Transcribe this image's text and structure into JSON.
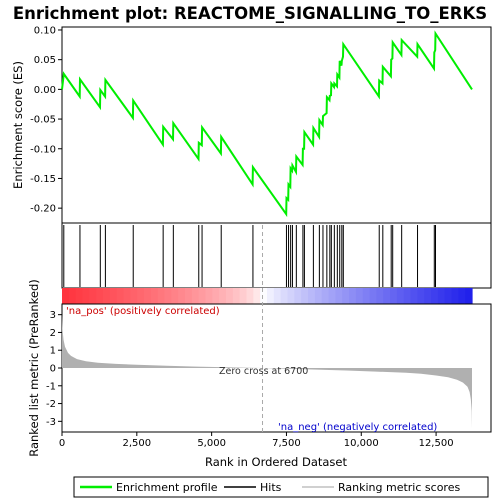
{
  "chart_data": {
    "type": "line",
    "title": "Enrichment plot: REACTOME_SIGNALLING_TO_ERKS",
    "xlabel": "Rank in Ordered Dataset",
    "top_ylabel": "Enrichment score (ES)",
    "bottom_ylabel": "Ranked list metric (PreRanked)",
    "xlim": [
      0,
      13700
    ],
    "es_ylim": [
      -0.225,
      0.105
    ],
    "metric_ylim": [
      -3.6,
      3.6
    ],
    "x_ticks": [
      0,
      2500,
      5000,
      7500,
      10000,
      12500
    ],
    "x_tick_labels": [
      "0",
      "2,500",
      "5,000",
      "7,500",
      "10,000",
      "12,500"
    ],
    "es_ticks": [
      0.1,
      0.05,
      0.0,
      -0.05,
      -0.1,
      -0.15,
      -0.2
    ],
    "es_tick_labels": [
      "0.10",
      "0.05",
      "0.00",
      "-0.05",
      "-0.10",
      "-0.15",
      "-0.20"
    ],
    "metric_ticks": [
      3,
      2,
      1,
      0,
      -1,
      -2,
      -3
    ],
    "metric_tick_labels": [
      "3",
      "2",
      "1",
      "0",
      "-1",
      "-2",
      "-3"
    ],
    "zero_cross": 6700,
    "zero_cross_label": "Zero cross at 6700",
    "pos_label": "'na_pos' (positively correlated)",
    "neg_label": "'na_neg' (negatively correlated)",
    "hits": [
      60,
      600,
      1280,
      1450,
      2380,
      3380,
      3720,
      4570,
      4680,
      5320,
      6380,
      7500,
      7570,
      7640,
      7700,
      7830,
      8050,
      8100,
      8400,
      8600,
      8720,
      8850,
      8950,
      9000,
      9100,
      9200,
      9280,
      9350,
      9400,
      10600,
      10720,
      11000,
      11050,
      11350,
      11880,
      12440,
      12480
    ],
    "es_profile": {
      "x": [
        0,
        60,
        590,
        600,
        1270,
        1280,
        1440,
        1450,
        2370,
        2380,
        3370,
        3380,
        3710,
        3720,
        4560,
        4570,
        4670,
        4680,
        5310,
        5320,
        6370,
        6380,
        7490,
        7500,
        7560,
        7570,
        7630,
        7640,
        7690,
        7700,
        7820,
        7830,
        8040,
        8050,
        8090,
        8100,
        8390,
        8400,
        8590,
        8600,
        8710,
        8720,
        8840,
        8850,
        8940,
        8950,
        8990,
        9000,
        9090,
        9100,
        9190,
        9200,
        9270,
        9280,
        9340,
        9350,
        9390,
        9400,
        10590,
        10600,
        10710,
        10720,
        10990,
        11000,
        11040,
        11050,
        11340,
        11350,
        11870,
        11880,
        12430,
        12440,
        12470,
        12480,
        13700
      ],
      "y": [
        0.0,
        0.026,
        -0.012,
        0.017,
        -0.03,
        -0.001,
        -0.012,
        0.016,
        -0.048,
        -0.019,
        -0.093,
        -0.063,
        -0.084,
        -0.057,
        -0.117,
        -0.09,
        -0.094,
        -0.064,
        -0.108,
        -0.08,
        -0.16,
        -0.131,
        -0.21,
        -0.183,
        -0.186,
        -0.16,
        -0.164,
        -0.133,
        -0.137,
        -0.128,
        -0.139,
        -0.113,
        -0.127,
        -0.1,
        -0.1,
        -0.072,
        -0.093,
        -0.065,
        -0.08,
        -0.052,
        -0.06,
        -0.045,
        -0.04,
        -0.013,
        -0.018,
        -0.011,
        -0.01,
        0.01,
        0.004,
        0.01,
        0.005,
        0.025,
        0.02,
        0.048,
        0.04,
        0.048,
        0.055,
        0.076,
        -0.012,
        0.015,
        0.01,
        0.038,
        0.022,
        0.05,
        0.052,
        0.079,
        0.058,
        0.083,
        0.055,
        0.076,
        0.035,
        0.062,
        0.066,
        0.094,
        0.0
      ]
    },
    "metric_profile": {
      "x": [
        0,
        20,
        50,
        100,
        200,
        300,
        500,
        800,
        1200,
        1800,
        2500,
        3500,
        4500,
        5500,
        6700,
        7500,
        8500,
        9500,
        10500,
        11500,
        12000,
        12500,
        12900,
        13200,
        13400,
        13550,
        13620,
        13660,
        13690,
        13700
      ],
      "y": [
        3.0,
        2.1,
        1.6,
        1.2,
        0.85,
        0.68,
        0.5,
        0.38,
        0.3,
        0.23,
        0.18,
        0.13,
        0.08,
        0.04,
        0.0,
        -0.04,
        -0.09,
        -0.14,
        -0.2,
        -0.27,
        -0.32,
        -0.42,
        -0.52,
        -0.66,
        -0.82,
        -1.05,
        -1.35,
        -1.75,
        -2.4,
        -3.4
      ]
    }
  },
  "legend": {
    "items": [
      {
        "label": "Enrichment profile",
        "color": "#00ee00"
      },
      {
        "label": "Hits",
        "color": "#000000"
      },
      {
        "label": "Ranking metric scores",
        "color": "#c0c0c0"
      }
    ]
  },
  "colors": {
    "es_line": "#00ee00",
    "metric_fill": "#b0b0b0",
    "zero_line": "#aaaaaa"
  }
}
